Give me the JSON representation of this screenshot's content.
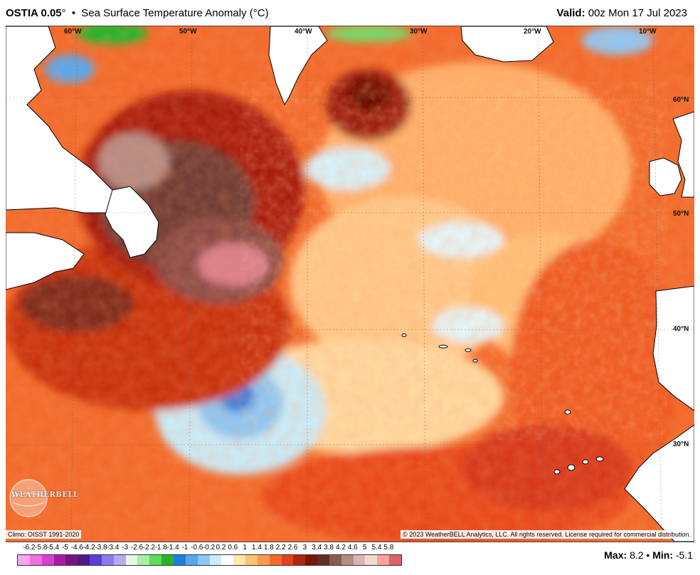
{
  "header": {
    "product": "OSTIA 0.05",
    "degree": "°",
    "bullet": "•",
    "subtitle": "Sea Surface Temperature Anomaly (°C)",
    "valid_label": "Valid:",
    "valid_time": "00z Mon 17 Jul 2023"
  },
  "map": {
    "longitude_labels": [
      "60°W",
      "50°W",
      "40°W",
      "30°W",
      "20°W",
      "10°W"
    ],
    "latitude_labels": [
      "60°N",
      "50°N",
      "40°N",
      "30°N"
    ],
    "colors": {
      "land": "#ffffff",
      "coast": "#000000",
      "ocean_base": "#f26a2b"
    }
  },
  "footer": {
    "climo": "Climo: OISST 1991-2020",
    "copyright": "© 2023 WeatherBELL Analytics, LLC. All rights reserved. License required for commercial distribution.",
    "logo_text": "WEATHERBELL",
    "max_label": "Max:",
    "max_value": "8.2",
    "min_label": "Min:",
    "min_value": "-5.1",
    "bullet": "•"
  },
  "legend": {
    "ticks": [
      "-6.2",
      "-5.8",
      "-5.4",
      "-5",
      "-4.6",
      "-4.2",
      "-3.8",
      "-3.4",
      "-3",
      "-2.6",
      "-2.2",
      "-1.8",
      "-1.4",
      "-1",
      "-0.6",
      "-0.2",
      "0.2",
      "0.6",
      "1",
      "1.4",
      "1.8",
      "2.2",
      "2.6",
      "3",
      "3.4",
      "3.8",
      "4.2",
      "4.6",
      "5",
      "5.4",
      "5.8"
    ],
    "colors": [
      "#f9a8f0",
      "#ee6fe6",
      "#d93fd2",
      "#a71aa8",
      "#7a137e",
      "#4c1a8c",
      "#5b3fd6",
      "#8b7af0",
      "#b6a9f5",
      "#e6f7e3",
      "#a6f0a0",
      "#5cdc5a",
      "#24b52a",
      "#1a7fe0",
      "#56a6f0",
      "#8cc8f6",
      "#c9ecfb",
      "#ffffff",
      "#ffe9a8",
      "#ffc273",
      "#ff9a4d",
      "#f76a28",
      "#e0401a",
      "#b5230f",
      "#7d1207",
      "#5e2e2a",
      "#8a5a55",
      "#b58c86",
      "#d9b7b0",
      "#f2d7d2",
      "#f6a3a3",
      "#e06262"
    ]
  }
}
